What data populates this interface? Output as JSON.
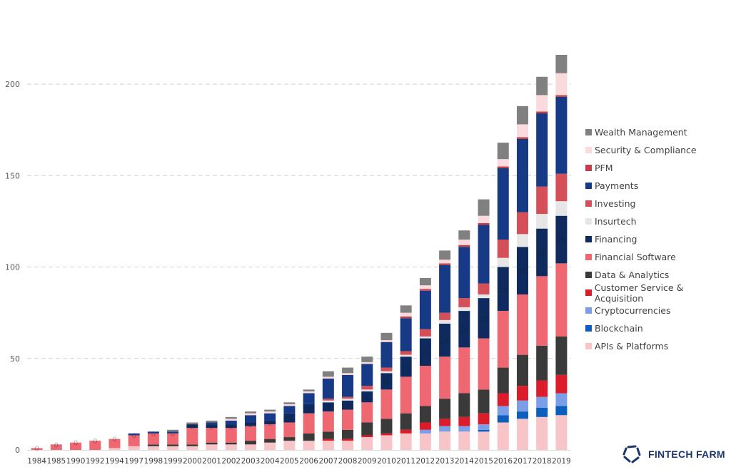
{
  "chart_data": {
    "type": "bar",
    "stacked": true,
    "title": "",
    "xlabel": "",
    "ylabel": "",
    "ylim": [
      0,
      220
    ],
    "yticks": [
      0,
      50,
      100,
      150,
      200
    ],
    "grid": true,
    "legend_position": "right",
    "data_labels_series": "Financing",
    "categories": [
      "1984",
      "1985",
      "1990",
      "1992",
      "1994",
      "1997",
      "1998",
      "1999",
      "2000",
      "2001",
      "2002",
      "2003",
      "2004",
      "2005",
      "2006",
      "2007",
      "2008",
      "2009",
      "2010",
      "2011",
      "2012",
      "2013",
      "2014",
      "2015",
      "2016",
      "2017",
      "2018",
      "2019"
    ],
    "series": [
      {
        "name": "APIs & Platforms",
        "color": "#f7c4c8",
        "values": [
          0,
          0,
          0,
          0,
          1,
          2,
          2,
          2,
          2,
          3,
          3,
          3,
          4,
          5,
          5,
          5,
          5,
          7,
          8,
          9,
          9,
          10,
          10,
          10,
          15,
          17,
          18,
          19
        ]
      },
      {
        "name": "Blockchain",
        "color": "#0a5fbf",
        "values": [
          0,
          0,
          0,
          0,
          0,
          0,
          0,
          0,
          0,
          0,
          0,
          0,
          0,
          0,
          0,
          0,
          0,
          0,
          0,
          0,
          0,
          0,
          0,
          1,
          4,
          4,
          5,
          5
        ]
      },
      {
        "name": "Cryptocurrencies",
        "color": "#7a9fe8",
        "values": [
          0,
          0,
          0,
          0,
          0,
          0,
          0,
          0,
          0,
          0,
          0,
          0,
          0,
          0,
          0,
          0,
          0,
          0,
          0,
          0,
          2,
          3,
          3,
          3,
          5,
          6,
          6,
          7
        ]
      },
      {
        "name": "Customer Service & Acquisition",
        "color": "#dc1c2a",
        "values": [
          0,
          0,
          0,
          0,
          0,
          0,
          0,
          0,
          0,
          0,
          0,
          0,
          0,
          0,
          0,
          1,
          1,
          1,
          1,
          2,
          4,
          4,
          5,
          6,
          7,
          8,
          9,
          10
        ]
      },
      {
        "name": "Data & Analytics",
        "color": "#3a3a3a",
        "values": [
          0,
          0,
          0,
          0,
          0,
          0,
          1,
          1,
          1,
          1,
          1,
          2,
          2,
          2,
          4,
          4,
          5,
          7,
          8,
          9,
          9,
          11,
          13,
          13,
          14,
          17,
          19,
          21
        ]
      },
      {
        "name": "Financial Software",
        "color": "#ef6871",
        "values": [
          1,
          3,
          4,
          5,
          5,
          6,
          6,
          6,
          9,
          8,
          8,
          8,
          8,
          8,
          11,
          11,
          11,
          11,
          16,
          20,
          22,
          23,
          25,
          28,
          31,
          33,
          38,
          40
        ]
      },
      {
        "name": "Financing",
        "color": "#0f2a5e",
        "values": [
          0,
          0,
          0,
          0,
          0,
          0,
          0,
          0,
          2,
          2,
          2,
          2,
          2,
          5,
          5,
          5,
          5,
          6,
          9,
          11,
          15,
          18,
          20,
          22,
          24,
          26,
          26,
          26
        ]
      },
      {
        "name": "Insurtech",
        "color": "#e6e6e6",
        "values": [
          0,
          0,
          0,
          0,
          0,
          0,
          0,
          0,
          0,
          0,
          0,
          0,
          0,
          0,
          0,
          1,
          1,
          1,
          1,
          1,
          1,
          2,
          2,
          2,
          5,
          7,
          8,
          8
        ]
      },
      {
        "name": "Investing",
        "color": "#d44f58",
        "values": [
          0,
          0,
          0,
          0,
          0,
          0,
          0,
          0,
          0,
          0,
          0,
          0,
          0,
          0,
          0,
          1,
          1,
          2,
          2,
          2,
          4,
          4,
          5,
          6,
          10,
          12,
          15,
          15
        ]
      },
      {
        "name": "Payments",
        "color": "#163a85",
        "values": [
          0,
          0,
          0,
          0,
          0,
          1,
          1,
          1,
          0,
          1,
          2,
          4,
          4,
          4,
          6,
          11,
          12,
          12,
          14,
          18,
          21,
          26,
          28,
          32,
          39,
          40,
          40,
          42
        ]
      },
      {
        "name": "PFM",
        "color": "#c0404a",
        "values": [
          0,
          0,
          0,
          0,
          0,
          0,
          0,
          0,
          0,
          0,
          0,
          0,
          0,
          0,
          0,
          0,
          0,
          0,
          0,
          1,
          1,
          1,
          1,
          1,
          1,
          1,
          1,
          1
        ]
      },
      {
        "name": "Security & Compliance",
        "color": "#fadadd",
        "values": [
          0,
          0,
          0,
          0,
          0,
          0,
          0,
          0,
          0,
          0,
          1,
          1,
          1,
          1,
          1,
          1,
          1,
          1,
          1,
          2,
          2,
          2,
          3,
          4,
          4,
          7,
          9,
          12
        ]
      },
      {
        "name": "Wealth Management",
        "color": "#808080",
        "values": [
          0,
          0,
          0,
          0,
          0,
          0,
          0,
          1,
          1,
          1,
          1,
          1,
          1,
          1,
          1,
          3,
          3,
          3,
          4,
          4,
          4,
          5,
          5,
          9,
          9,
          10,
          10,
          10
        ]
      }
    ]
  },
  "logo": {
    "text": "FINTECH FARM",
    "color": "#1c3570",
    "icon": "pentagon-logo-icon"
  }
}
